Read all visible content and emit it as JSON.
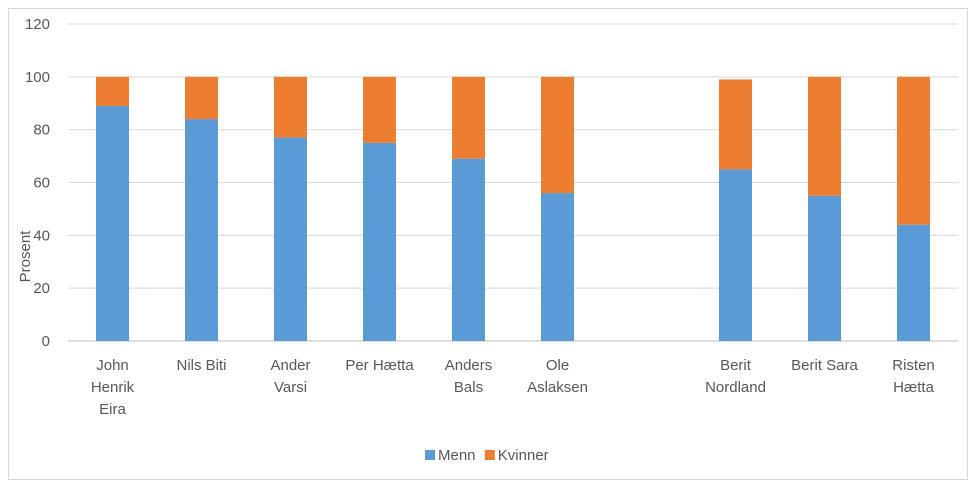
{
  "chart_data": {
    "type": "bar",
    "stacked": true,
    "ylabel": "Prosent",
    "xlabel": "",
    "ylim": [
      0,
      120
    ],
    "yticks": [
      0,
      20,
      40,
      60,
      80,
      100,
      120
    ],
    "grid": true,
    "legend_position": "bottom",
    "categories": [
      [
        "John",
        "Henrik",
        "Eira"
      ],
      [
        "Nils Biti"
      ],
      [
        "Ander",
        "Varsi"
      ],
      [
        "Per Hætta"
      ],
      [
        "Anders",
        "Bals"
      ],
      [
        "Ole",
        "Aslaksen"
      ],
      [],
      [
        "Berit",
        "Nordland"
      ],
      [
        "Berit Sara"
      ],
      [
        "Risten",
        "Hætta"
      ]
    ],
    "series": [
      {
        "name": "Menn",
        "color": "#5b9bd5",
        "values": [
          89,
          84,
          77,
          75,
          69,
          56,
          null,
          65,
          55,
          44
        ]
      },
      {
        "name": "Kvinner",
        "color": "#ed7d31",
        "values": [
          11,
          16,
          23,
          25,
          31,
          44,
          null,
          34,
          45,
          56
        ]
      }
    ]
  }
}
